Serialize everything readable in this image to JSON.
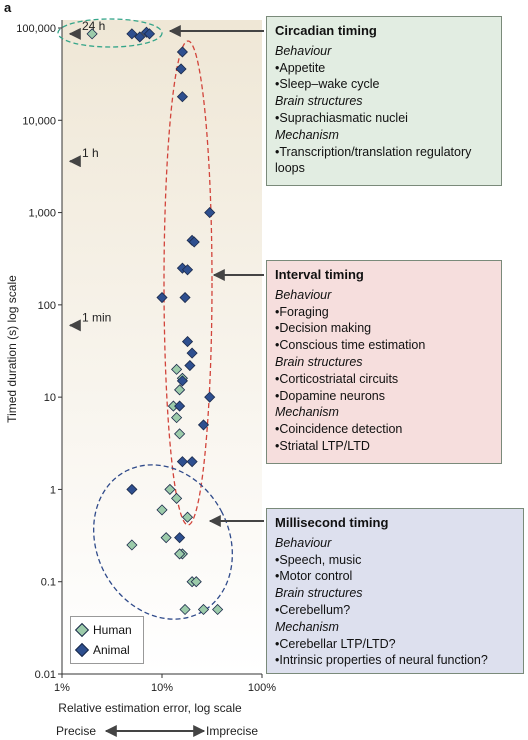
{
  "panel_label": "a",
  "colors": {
    "human": "#9ccbaa",
    "animal": "#2e4f8f",
    "stroke": "#1b2a4a"
  },
  "chart_data": {
    "type": "scatter",
    "xlabel": "Relative estimation error, log scale",
    "ylabel": "Timed duration (s) log scale",
    "x_scale": "log",
    "y_scale": "log",
    "xlim": [
      0.01,
      1
    ],
    "ylim": [
      0.01,
      100000
    ],
    "x_ticks": [
      {
        "value": 0.01,
        "label": "1%"
      },
      {
        "value": 0.1,
        "label": "10%"
      },
      {
        "value": 1,
        "label": "100%"
      }
    ],
    "y_ticks": [
      {
        "value": 100000,
        "label": "100,000"
      },
      {
        "value": 10000,
        "label": "10,000"
      },
      {
        "value": 1000,
        "label": "1,000"
      },
      {
        "value": 100,
        "label": "100"
      },
      {
        "value": 10,
        "label": "10"
      },
      {
        "value": 1,
        "label": "1"
      },
      {
        "value": 0.1,
        "label": "0.1"
      },
      {
        "value": 0.01,
        "label": "0.01"
      }
    ],
    "precision_axis": {
      "left": "Precise",
      "right": "Imprecise"
    },
    "reference_marks": [
      {
        "label": "24 h",
        "value": 86400
      },
      {
        "label": "1 h",
        "value": 3600
      },
      {
        "label": "1 min",
        "value": 60
      }
    ],
    "series": [
      {
        "name": "Human",
        "points": [
          {
            "x": 0.02,
            "y": 86400
          },
          {
            "x": 0.14,
            "y": 20
          },
          {
            "x": 0.15,
            "y": 12
          },
          {
            "x": 0.16,
            "y": 16
          },
          {
            "x": 0.13,
            "y": 8
          },
          {
            "x": 0.14,
            "y": 6
          },
          {
            "x": 0.15,
            "y": 4
          },
          {
            "x": 0.12,
            "y": 1
          },
          {
            "x": 0.1,
            "y": 0.6
          },
          {
            "x": 0.14,
            "y": 0.8
          },
          {
            "x": 0.18,
            "y": 0.5
          },
          {
            "x": 0.11,
            "y": 0.3
          },
          {
            "x": 0.16,
            "y": 0.2
          },
          {
            "x": 0.05,
            "y": 0.25
          },
          {
            "x": 0.15,
            "y": 0.2
          },
          {
            "x": 0.2,
            "y": 0.1
          },
          {
            "x": 0.22,
            "y": 0.1
          },
          {
            "x": 0.26,
            "y": 0.05
          },
          {
            "x": 0.36,
            "y": 0.05
          },
          {
            "x": 0.17,
            "y": 0.05
          }
        ]
      },
      {
        "name": "Animal",
        "points": [
          {
            "x": 0.05,
            "y": 86400
          },
          {
            "x": 0.06,
            "y": 80000
          },
          {
            "x": 0.07,
            "y": 90000
          },
          {
            "x": 0.075,
            "y": 86400
          },
          {
            "x": 0.16,
            "y": 55000
          },
          {
            "x": 0.155,
            "y": 36000
          },
          {
            "x": 0.16,
            "y": 18000
          },
          {
            "x": 0.3,
            "y": 1000
          },
          {
            "x": 0.2,
            "y": 500
          },
          {
            "x": 0.21,
            "y": 480
          },
          {
            "x": 0.16,
            "y": 250
          },
          {
            "x": 0.18,
            "y": 240
          },
          {
            "x": 0.1,
            "y": 120
          },
          {
            "x": 0.17,
            "y": 120
          },
          {
            "x": 0.18,
            "y": 40
          },
          {
            "x": 0.2,
            "y": 30
          },
          {
            "x": 0.19,
            "y": 22
          },
          {
            "x": 0.16,
            "y": 15
          },
          {
            "x": 0.15,
            "y": 8
          },
          {
            "x": 0.3,
            "y": 10
          },
          {
            "x": 0.26,
            "y": 5
          },
          {
            "x": 0.16,
            "y": 2
          },
          {
            "x": 0.2,
            "y": 2
          },
          {
            "x": 0.05,
            "y": 1
          },
          {
            "x": 0.15,
            "y": 0.3
          }
        ]
      }
    ]
  },
  "legend": {
    "human": "Human",
    "animal": "Animal"
  },
  "boxes": {
    "circadian": {
      "title": "Circadian timing",
      "behaviour_head": "Behaviour",
      "behaviour": [
        "Appetite",
        "Sleep–wake cycle"
      ],
      "brain_head": "Brain structures",
      "brain": [
        "Suprachiasmatic nuclei"
      ],
      "mechanism_head": "Mechanism",
      "mechanism": [
        "Transcription/translation regulatory loops"
      ]
    },
    "interval": {
      "title": "Interval timing",
      "behaviour_head": "Behaviour",
      "behaviour": [
        "Foraging",
        "Decision making",
        "Conscious time estimation"
      ],
      "brain_head": "Brain structures",
      "brain": [
        "Corticostriatal circuits",
        "Dopamine neurons"
      ],
      "mechanism_head": "Mechanism",
      "mechanism": [
        "Coincidence detection",
        "Striatal LTP/LTD"
      ]
    },
    "millisecond": {
      "title": "Millisecond timing",
      "behaviour_head": "Behaviour",
      "behaviour": [
        "Speech, music",
        "Motor control"
      ],
      "brain_head": "Brain structures",
      "brain": [
        "Cerebellum?"
      ],
      "mechanism_head": "Mechanism",
      "mechanism": [
        "Cerebellar LTP/LTD?",
        "Intrinsic properties of neural function?"
      ]
    }
  }
}
